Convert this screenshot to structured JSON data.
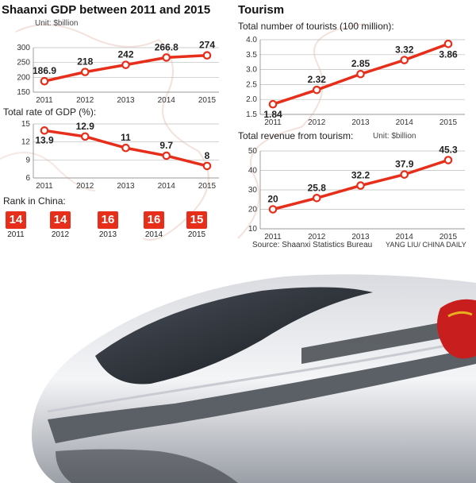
{
  "gdp_title": "Shaanxi GDP between 2011 and 2015",
  "tourism_title": "Tourism",
  "rank_label": "Rank in China:",
  "source": "Source: Shaanxi Statistics Bureau",
  "credit": "YANG LIU/ CHINA DAILY",
  "ranks": [
    {
      "year": "2011",
      "rank": "14"
    },
    {
      "year": "2012",
      "rank": "14"
    },
    {
      "year": "2013",
      "rank": "16"
    },
    {
      "year": "2014",
      "rank": "16"
    },
    {
      "year": "2015",
      "rank": "15"
    }
  ],
  "colors": {
    "accent": "#e62e1a",
    "grid": "#bbbbbb"
  },
  "chart_data": [
    {
      "id": "gdp",
      "type": "line",
      "title": "",
      "unit": "Unit: $billion",
      "categories": [
        "2011",
        "2012",
        "2013",
        "2014",
        "2015"
      ],
      "values": [
        186.9,
        218,
        242,
        266.8,
        274
      ],
      "value_labels": [
        "186.9",
        "218",
        "242",
        "266.8",
        "274"
      ],
      "ylim": [
        150,
        300
      ],
      "yticks": [
        150,
        200,
        250,
        300
      ],
      "grid": true
    },
    {
      "id": "rate",
      "type": "line",
      "title": "Total rate of GDP (%):",
      "unit": "",
      "categories": [
        "2011",
        "2012",
        "2013",
        "2014",
        "2015"
      ],
      "values": [
        13.9,
        12.9,
        11,
        9.7,
        8
      ],
      "value_labels": [
        "13.9",
        "12.9",
        "11",
        "9.7",
        "8"
      ],
      "ylim": [
        6,
        15
      ],
      "yticks": [
        6,
        9,
        12,
        15
      ],
      "grid": true
    },
    {
      "id": "tourists",
      "type": "line",
      "title": "Total number of tourists (100 million):",
      "unit": "",
      "categories": [
        "2011",
        "2012",
        "2013",
        "2014",
        "2015"
      ],
      "values": [
        1.84,
        2.32,
        2.85,
        3.32,
        3.86
      ],
      "value_labels": [
        "1.84",
        "2.32",
        "2.85",
        "3.32",
        "3.86"
      ],
      "ylim": [
        1.5,
        4.0
      ],
      "yticks": [
        1.5,
        2.0,
        2.5,
        3.0,
        3.5,
        4.0
      ],
      "ytick_labels": [
        "1.5",
        "2.0",
        "2.5",
        "3.0",
        "3.5",
        "4.0"
      ],
      "grid": true
    },
    {
      "id": "revenue",
      "type": "line",
      "title": "Total revenue from tourism:",
      "unit": "Unit: $billion",
      "categories": [
        "2011",
        "2012",
        "2013",
        "2014",
        "2015"
      ],
      "values": [
        20,
        25.8,
        32.2,
        37.9,
        45.3
      ],
      "value_labels": [
        "20",
        "25.8",
        "32.2",
        "37.9",
        "45.3"
      ],
      "ylim": [
        10,
        50
      ],
      "yticks": [
        10,
        20,
        30,
        40,
        50
      ],
      "grid": true
    }
  ]
}
